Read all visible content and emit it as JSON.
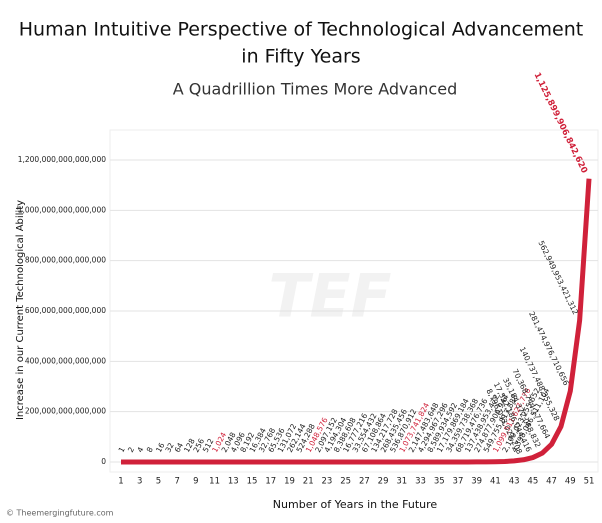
{
  "chart_data": {
    "type": "line",
    "title": "Human Intuitive Perspective of Technological Advancement",
    "title_line2": "in Fifty Years",
    "subtitle": "A Quadrillion Times More Advanced",
    "x_label": "Number of Years in the Future",
    "y_label": "Increase in our Current Technological Ability",
    "watermark": "TEF",
    "source": "© Theemergingfuture.com",
    "x": [
      1,
      2,
      3,
      4,
      5,
      6,
      7,
      8,
      9,
      10,
      11,
      12,
      13,
      14,
      15,
      16,
      17,
      18,
      19,
      20,
      21,
      22,
      23,
      24,
      25,
      26,
      27,
      28,
      29,
      30,
      31,
      32,
      33,
      34,
      35,
      36,
      37,
      38,
      39,
      40,
      41,
      42,
      43,
      44,
      45,
      46,
      47,
      48,
      49,
      50,
      51
    ],
    "xlim": [
      1,
      51
    ],
    "xticks": [
      1,
      3,
      5,
      7,
      9,
      11,
      13,
      15,
      17,
      19,
      21,
      23,
      25,
      27,
      29,
      31,
      33,
      35,
      37,
      39,
      41,
      43,
      45,
      47,
      49,
      51
    ],
    "ylim": [
      0,
      1200000000000000
    ],
    "yticks": [
      0,
      {
        "value": 200000000000000,
        "label": "200,000,000,000,000"
      },
      {
        "value": 400000000000000,
        "label": "400,000,000,000,000"
      },
      {
        "value": 600000000000000,
        "label": "600,000,000,000,000"
      },
      {
        "value": 800000000000000,
        "label": "800,000,000,000,000"
      },
      {
        "value": 1000000000000000,
        "label": "1,000,000,000,000,000"
      },
      {
        "value": 1200000000000000,
        "label": "1,200,000,000,000,000"
      }
    ],
    "grid": true,
    "color": "#d0213a",
    "label_color": "#222222",
    "highlight_color": "#d0213a",
    "highlighted": [
      10,
      20,
      30,
      40,
      50
    ],
    "values": [
      1,
      2,
      4,
      8,
      16,
      32,
      64,
      128,
      256,
      512,
      1024,
      2048,
      4096,
      8192,
      16384,
      32768,
      65536,
      131072,
      262144,
      524288,
      1048576,
      2097152,
      4194304,
      8388608,
      16777216,
      33554432,
      67108864,
      134217728,
      268435456,
      536870912,
      1073741824,
      2147483648,
      4294967296,
      8589934592,
      17179869184,
      34359738368,
      68719476736,
      137438953472,
      274877906944,
      549755813888,
      1099511627776,
      2199023255552,
      4398046511104,
      8796093022208,
      17592186044416,
      35184372088832,
      70368744177664,
      140737488355328,
      281474976710656,
      562949953421312,
      1125899906842620
    ],
    "value_labels": [
      "1",
      "2",
      "4",
      "8",
      "16",
      "32",
      "64",
      "128",
      "256",
      "512",
      "1,024",
      "2,048",
      "4,096",
      "8,192",
      "16,384",
      "32,768",
      "65,536",
      "131,072",
      "262,144",
      "524,288",
      "1,048,576",
      "2,097,152",
      "4,194,304",
      "8,388,608",
      "16,777,216",
      "33,554,432",
      "67,108,864",
      "134,217,728",
      "268,435,456",
      "536,870,912",
      "1,073,741,824",
      "2,147,483,648",
      "4,294,967,296",
      "8,589,934,592",
      "17,179,869,184",
      "34,359,738,368",
      "68,719,476,736",
      "137,438,953,472",
      "274,877,906,944",
      "549,755,813,888",
      "1,099,511,627,776",
      "2,199,023,255,552",
      "4,398,046,511,104",
      "8,796,093,022,208",
      "17,592,186,044,416",
      "35,184,372,088,832",
      "70,368,744,177,664",
      "140,737,488,355,328",
      "281,474,976,710,656",
      "562,949,953,421,312",
      "1,125,899,906,842,620"
    ]
  }
}
